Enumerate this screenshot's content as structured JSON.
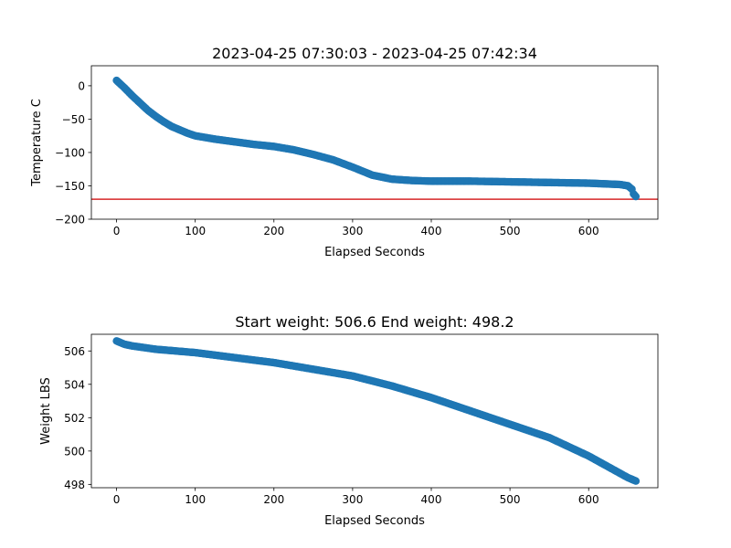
{
  "chart_data": [
    {
      "type": "scatter",
      "title": "2023-04-25 07:30:03 - 2023-04-25 07:42:34",
      "xlabel": "Elapsed Seconds",
      "ylabel": "Temperature C",
      "xlim": [
        -32,
        688
      ],
      "ylim": [
        -200,
        30
      ],
      "xticks": [
        0,
        100,
        200,
        300,
        400,
        500,
        600
      ],
      "yticks": [
        0,
        -50,
        -100,
        -150,
        -200
      ],
      "xtick_labels": [
        "0",
        "100",
        "200",
        "300",
        "400",
        "500",
        "600"
      ],
      "ytick_labels": [
        "0",
        "−50",
        "−100",
        "−150",
        "−200"
      ],
      "grid": false,
      "marker_color": "#1f77b4",
      "reference_line": {
        "y": -170,
        "color": "#d62728"
      },
      "x": [
        0,
        10,
        20,
        30,
        40,
        50,
        60,
        70,
        80,
        90,
        100,
        125,
        150,
        175,
        200,
        225,
        250,
        275,
        300,
        325,
        350,
        375,
        400,
        450,
        500,
        550,
        600,
        640,
        650,
        655,
        657,
        660
      ],
      "y": [
        8,
        -3,
        -15,
        -26,
        -37,
        -46,
        -54,
        -61,
        -66,
        -71,
        -75,
        -80,
        -84,
        -88,
        -91,
        -96,
        -103,
        -111,
        -122,
        -134,
        -140,
        -142,
        -143,
        -143,
        -144,
        -145,
        -146,
        -148,
        -150,
        -155,
        -162,
        -166
      ]
    },
    {
      "type": "scatter",
      "title": "Start weight: 506.6 End weight: 498.2",
      "xlabel": "Elapsed Seconds",
      "ylabel": "Weight LBS",
      "xlim": [
        -32,
        688
      ],
      "ylim": [
        497.8,
        507.0
      ],
      "xticks": [
        0,
        100,
        200,
        300,
        400,
        500,
        600
      ],
      "yticks": [
        498,
        500,
        502,
        504,
        506
      ],
      "xtick_labels": [
        "0",
        "100",
        "200",
        "300",
        "400",
        "500",
        "600"
      ],
      "ytick_labels": [
        "498",
        "500",
        "502",
        "504",
        "506"
      ],
      "grid": false,
      "marker_color": "#1f77b4",
      "x": [
        0,
        10,
        20,
        50,
        100,
        150,
        200,
        250,
        300,
        350,
        400,
        450,
        500,
        550,
        600,
        650,
        660
      ],
      "y": [
        506.6,
        506.4,
        506.3,
        506.1,
        505.9,
        505.6,
        505.3,
        504.9,
        504.5,
        503.9,
        503.2,
        502.4,
        501.6,
        500.8,
        499.7,
        498.4,
        498.2
      ]
    }
  ]
}
